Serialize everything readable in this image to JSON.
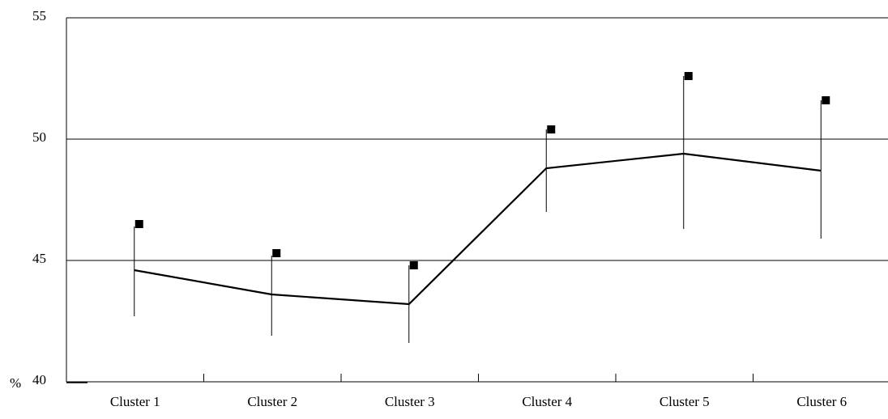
{
  "chart_data": {
    "type": "line",
    "title": "",
    "xlabel": "",
    "ylabel": "%",
    "categories": [
      "Cluster 1",
      "Cluster 2",
      "Cluster 3",
      "Cluster 4",
      "Cluster 5",
      "Cluster 6"
    ],
    "ylim": [
      40,
      55
    ],
    "yticks": [
      40,
      45,
      50,
      55
    ],
    "grid": true,
    "legend": "none",
    "series": [
      {
        "values": [
          44.6,
          43.6,
          43.2,
          48.8,
          49.4,
          48.7
        ],
        "error_low": [
          42.7,
          41.9,
          41.6,
          47.0,
          46.3,
          45.9
        ],
        "error_high": [
          46.4,
          45.2,
          44.8,
          50.4,
          52.6,
          51.6
        ],
        "markers": [
          46.5,
          45.3,
          44.8,
          50.4,
          52.6,
          51.6
        ]
      }
    ],
    "colors": {
      "line": "#000000",
      "grid": "#000000",
      "marker": "#000000"
    }
  }
}
